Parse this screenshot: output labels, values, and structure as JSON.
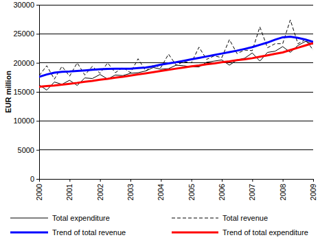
{
  "chart_data": {
    "type": "line",
    "y_label": "EUR million",
    "categories": [
      "2000",
      null,
      null,
      null,
      "2001",
      null,
      null,
      null,
      "2002",
      null,
      null,
      null,
      "2003",
      null,
      null,
      null,
      "2004",
      null,
      null,
      null,
      "2005",
      null,
      null,
      null,
      "2006",
      null,
      null,
      null,
      "2007",
      null,
      null,
      null,
      "2008",
      null,
      null,
      null,
      "2009"
    ],
    "ylim": [
      0,
      30000
    ],
    "yticks": [
      0,
      5000,
      10000,
      15000,
      20000,
      25000,
      30000
    ],
    "grid": true,
    "legend": "bottom",
    "series": [
      {
        "name": "Total expenditure",
        "color": "#000000",
        "line_style": "solid",
        "values": [
          16200,
          15300,
          16700,
          16300,
          17000,
          16100,
          17400,
          17300,
          18000,
          17200,
          17900,
          17800,
          18200,
          18300,
          18600,
          19200,
          18900,
          19000,
          19600,
          19500,
          19300,
          19300,
          20100,
          20300,
          20500,
          19600,
          20500,
          20800,
          21700,
          20300,
          21800,
          22000,
          22800,
          21800,
          23000,
          23700,
          23200
        ]
      },
      {
        "name": "Total revenue",
        "color": "#000000",
        "line_style": "dashed",
        "values": [
          17800,
          19500,
          17200,
          19400,
          17700,
          20000,
          17900,
          19400,
          18200,
          20000,
          18300,
          19200,
          18300,
          20700,
          18600,
          19600,
          19200,
          21500,
          19600,
          20200,
          20000,
          22700,
          20600,
          21200,
          20900,
          24000,
          21600,
          22200,
          22100,
          26200,
          22600,
          23300,
          23300,
          27400,
          23300,
          24000,
          22200
        ]
      },
      {
        "name": "Trend of total revenue",
        "color": "#0000ff",
        "line_style": "solid",
        "values": [
          17600,
          18000,
          18300,
          18450,
          18500,
          18600,
          18700,
          18800,
          18900,
          18950,
          19000,
          19000,
          19000,
          19100,
          19200,
          19400,
          19700,
          19900,
          20100,
          20350,
          20600,
          20850,
          21100,
          21350,
          21600,
          21850,
          22100,
          22400,
          22700,
          23100,
          23500,
          24000,
          24400,
          24500,
          24300,
          24000,
          23600
        ]
      },
      {
        "name": "Trend of total expenditure",
        "color": "#ff0000",
        "line_style": "solid",
        "values": [
          15900,
          16000,
          16100,
          16250,
          16400,
          16550,
          16750,
          16900,
          17100,
          17250,
          17450,
          17600,
          17800,
          18000,
          18200,
          18400,
          18600,
          18800,
          19000,
          19200,
          19400,
          19550,
          19750,
          19900,
          20100,
          20250,
          20450,
          20600,
          20800,
          21050,
          21300,
          21550,
          21800,
          22200,
          22600,
          23000,
          23400
        ]
      }
    ]
  }
}
